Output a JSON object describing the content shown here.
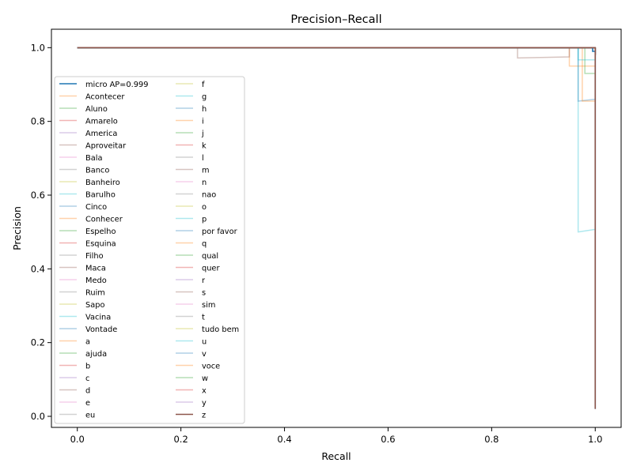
{
  "chart_data": {
    "type": "line",
    "title": "Precision–Recall",
    "xlabel": "Recall",
    "ylabel": "Precision",
    "xlim": [
      -0.05,
      1.05
    ],
    "ylim": [
      -0.03,
      1.05
    ],
    "xticks": [
      0.0,
      0.2,
      0.4,
      0.6,
      0.8,
      1.0
    ],
    "xtick_labels": [
      "0.0",
      "0.2",
      "0.4",
      "0.6",
      "0.8",
      "1.0"
    ],
    "yticks": [
      0.0,
      0.2,
      0.4,
      0.6,
      0.8,
      1.0
    ],
    "ytick_labels": [
      "0.0",
      "0.2",
      "0.4",
      "0.6",
      "0.8",
      "1.0"
    ],
    "grid": false,
    "legend_placement": "center-left",
    "legend_columns": 2,
    "series": [
      {
        "name": "micro AP=0.999",
        "color": "#1f77b4",
        "alpha": 1.0,
        "x": [
          0,
          0.995,
          0.995,
          1.0,
          1.0
        ],
        "y": [
          1.0,
          1.0,
          0.99,
          0.99,
          0.02
        ]
      },
      {
        "name": "Acontecer",
        "color": "#ff7f0e",
        "alpha": 0.35,
        "x": [
          0,
          0.95,
          0.95,
          1.0,
          1.0
        ],
        "y": [
          1.0,
          1.0,
          0.95,
          0.95,
          0.95
        ]
      },
      {
        "name": "Aluno",
        "color": "#2ca02c",
        "alpha": 0.35,
        "x": [
          0,
          1.0,
          1.0
        ],
        "y": [
          1.0,
          1.0,
          0.98
        ]
      },
      {
        "name": "Amarelo",
        "color": "#d62728",
        "alpha": 0.35,
        "x": [
          0,
          1.0,
          1.0
        ],
        "y": [
          1.0,
          1.0,
          0.97
        ]
      },
      {
        "name": "America",
        "color": "#9467bd",
        "alpha": 0.35,
        "x": [
          0,
          1.0,
          1.0
        ],
        "y": [
          1.0,
          1.0,
          0.99
        ]
      },
      {
        "name": "Aproveitar",
        "color": "#8c564b",
        "alpha": 0.35,
        "x": [
          0,
          0.85,
          0.85,
          0.95,
          0.95,
          1.0
        ],
        "y": [
          1.0,
          1.0,
          0.972,
          0.975,
          1.0,
          1.0
        ]
      },
      {
        "name": "Bala",
        "color": "#e377c2",
        "alpha": 0.35,
        "x": [
          0,
          1.0,
          1.0
        ],
        "y": [
          1.0,
          1.0,
          0.98
        ]
      },
      {
        "name": "Banco",
        "color": "#7f7f7f",
        "alpha": 0.35,
        "x": [
          0,
          1.0,
          1.0
        ],
        "y": [
          1.0,
          1.0,
          0.99
        ]
      },
      {
        "name": "Banheiro",
        "color": "#bcbd22",
        "alpha": 0.35,
        "x": [
          0,
          1.0,
          1.0
        ],
        "y": [
          1.0,
          1.0,
          0.985
        ]
      },
      {
        "name": "Barulho",
        "color": "#17becf",
        "alpha": 0.35,
        "x": [
          0,
          0.967,
          0.967,
          1.0,
          1.0
        ],
        "y": [
          1.0,
          1.0,
          0.5,
          0.507,
          1.0
        ]
      },
      {
        "name": "Cinco",
        "color": "#1f77b4",
        "alpha": 0.35,
        "x": [
          0,
          0.967,
          0.967,
          1.0,
          1.0
        ],
        "y": [
          1.0,
          1.0,
          0.855,
          0.86,
          1.0
        ]
      },
      {
        "name": "Conhecer",
        "color": "#ff7f0e",
        "alpha": 0.35,
        "x": [
          0,
          0.975,
          0.975,
          1.0,
          1.0
        ],
        "y": [
          1.0,
          1.0,
          0.855,
          0.855,
          1.0
        ]
      },
      {
        "name": "Espelho",
        "color": "#2ca02c",
        "alpha": 0.35,
        "x": [
          0,
          0.98,
          0.98,
          1.0,
          1.0
        ],
        "y": [
          1.0,
          1.0,
          0.93,
          0.93,
          1.0
        ]
      },
      {
        "name": "Esquina",
        "color": "#d62728",
        "alpha": 0.35,
        "x": [
          0,
          1.0,
          1.0
        ],
        "y": [
          1.0,
          1.0,
          0.98
        ]
      },
      {
        "name": "Filho",
        "color": "#7f7f7f",
        "alpha": 0.35,
        "x": [
          0,
          1.0,
          1.0
        ],
        "y": [
          1.0,
          1.0,
          0.99
        ]
      },
      {
        "name": "Maca",
        "color": "#8c564b",
        "alpha": 0.35,
        "x": [
          0,
          1.0,
          1.0
        ],
        "y": [
          1.0,
          1.0,
          0.98
        ]
      },
      {
        "name": "Medo",
        "color": "#e377c2",
        "alpha": 0.35,
        "x": [
          0,
          1.0,
          1.0
        ],
        "y": [
          1.0,
          1.0,
          0.98
        ]
      },
      {
        "name": "Ruim",
        "color": "#7f7f7f",
        "alpha": 0.35,
        "x": [
          0,
          1.0,
          1.0
        ],
        "y": [
          1.0,
          1.0,
          0.99
        ]
      },
      {
        "name": "Sapo",
        "color": "#bcbd22",
        "alpha": 0.35,
        "x": [
          0,
          1.0,
          1.0
        ],
        "y": [
          1.0,
          1.0,
          0.98
        ]
      },
      {
        "name": "Vacina",
        "color": "#17becf",
        "alpha": 0.35,
        "x": [
          0,
          0.967,
          0.967,
          1.0,
          1.0
        ],
        "y": [
          1.0,
          1.0,
          0.967,
          0.967,
          1.0
        ]
      },
      {
        "name": "Vontade",
        "color": "#1f77b4",
        "alpha": 0.35,
        "x": [
          0,
          1.0,
          1.0
        ],
        "y": [
          1.0,
          1.0,
          0.99
        ]
      },
      {
        "name": "a",
        "color": "#ff7f0e",
        "alpha": 0.35,
        "x": [
          0,
          1.0,
          1.0
        ],
        "y": [
          1.0,
          1.0,
          0.98
        ]
      },
      {
        "name": "ajuda",
        "color": "#2ca02c",
        "alpha": 0.35,
        "x": [
          0,
          1.0,
          1.0
        ],
        "y": [
          1.0,
          1.0,
          0.98
        ]
      },
      {
        "name": "b",
        "color": "#d62728",
        "alpha": 0.35,
        "x": [
          0,
          1.0,
          1.0
        ],
        "y": [
          1.0,
          1.0,
          0.98
        ]
      },
      {
        "name": "c",
        "color": "#9467bd",
        "alpha": 0.35,
        "x": [
          0,
          1.0,
          1.0
        ],
        "y": [
          1.0,
          1.0,
          0.98
        ]
      },
      {
        "name": "d",
        "color": "#8c564b",
        "alpha": 0.35,
        "x": [
          0,
          1.0,
          1.0
        ],
        "y": [
          1.0,
          1.0,
          0.98
        ]
      },
      {
        "name": "e",
        "color": "#e377c2",
        "alpha": 0.35,
        "x": [
          0,
          1.0,
          1.0
        ],
        "y": [
          1.0,
          1.0,
          0.98
        ]
      },
      {
        "name": "eu",
        "color": "#7f7f7f",
        "alpha": 0.35,
        "x": [
          0,
          1.0,
          1.0
        ],
        "y": [
          1.0,
          1.0,
          0.99
        ]
      },
      {
        "name": "f",
        "color": "#bcbd22",
        "alpha": 0.35,
        "x": [
          0,
          1.0,
          1.0
        ],
        "y": [
          1.0,
          1.0,
          0.98
        ]
      },
      {
        "name": "g",
        "color": "#17becf",
        "alpha": 0.35,
        "x": [
          0,
          1.0,
          1.0
        ],
        "y": [
          1.0,
          1.0,
          0.98
        ]
      },
      {
        "name": "h",
        "color": "#1f77b4",
        "alpha": 0.35,
        "x": [
          0,
          1.0,
          1.0
        ],
        "y": [
          1.0,
          1.0,
          0.98
        ]
      },
      {
        "name": "i",
        "color": "#ff7f0e",
        "alpha": 0.35,
        "x": [
          0,
          1.0,
          1.0
        ],
        "y": [
          1.0,
          1.0,
          0.98
        ]
      },
      {
        "name": "j",
        "color": "#2ca02c",
        "alpha": 0.35,
        "x": [
          0,
          1.0,
          1.0
        ],
        "y": [
          1.0,
          1.0,
          0.98
        ]
      },
      {
        "name": "k",
        "color": "#d62728",
        "alpha": 0.35,
        "x": [
          0,
          1.0,
          1.0
        ],
        "y": [
          1.0,
          1.0,
          0.98
        ]
      },
      {
        "name": "l",
        "color": "#7f7f7f",
        "alpha": 0.35,
        "x": [
          0,
          1.0,
          1.0
        ],
        "y": [
          1.0,
          1.0,
          0.98
        ]
      },
      {
        "name": "m",
        "color": "#8c564b",
        "alpha": 0.35,
        "x": [
          0,
          1.0,
          1.0
        ],
        "y": [
          1.0,
          1.0,
          0.98
        ]
      },
      {
        "name": "n",
        "color": "#e377c2",
        "alpha": 0.35,
        "x": [
          0,
          1.0,
          1.0
        ],
        "y": [
          1.0,
          1.0,
          0.98
        ]
      },
      {
        "name": "nao",
        "color": "#7f7f7f",
        "alpha": 0.35,
        "x": [
          0,
          1.0,
          1.0
        ],
        "y": [
          1.0,
          1.0,
          0.98
        ]
      },
      {
        "name": "o",
        "color": "#bcbd22",
        "alpha": 0.35,
        "x": [
          0,
          1.0,
          1.0
        ],
        "y": [
          1.0,
          1.0,
          0.98
        ]
      },
      {
        "name": "p",
        "color": "#17becf",
        "alpha": 0.35,
        "x": [
          0,
          1.0,
          1.0
        ],
        "y": [
          1.0,
          1.0,
          0.98
        ]
      },
      {
        "name": "por favor",
        "color": "#1f77b4",
        "alpha": 0.35,
        "x": [
          0,
          1.0,
          1.0
        ],
        "y": [
          1.0,
          1.0,
          0.98
        ]
      },
      {
        "name": "q",
        "color": "#ff7f0e",
        "alpha": 0.35,
        "x": [
          0,
          1.0,
          1.0
        ],
        "y": [
          1.0,
          1.0,
          0.98
        ]
      },
      {
        "name": "qual",
        "color": "#2ca02c",
        "alpha": 0.35,
        "x": [
          0,
          1.0,
          1.0
        ],
        "y": [
          1.0,
          1.0,
          0.98
        ]
      },
      {
        "name": "quer",
        "color": "#d62728",
        "alpha": 0.35,
        "x": [
          0,
          1.0,
          1.0
        ],
        "y": [
          1.0,
          1.0,
          0.98
        ]
      },
      {
        "name": "r",
        "color": "#9467bd",
        "alpha": 0.35,
        "x": [
          0,
          1.0,
          1.0
        ],
        "y": [
          1.0,
          1.0,
          0.98
        ]
      },
      {
        "name": "s",
        "color": "#8c564b",
        "alpha": 0.35,
        "x": [
          0,
          1.0,
          1.0
        ],
        "y": [
          1.0,
          1.0,
          0.98
        ]
      },
      {
        "name": "sim",
        "color": "#e377c2",
        "alpha": 0.35,
        "x": [
          0,
          1.0,
          1.0
        ],
        "y": [
          1.0,
          1.0,
          0.98
        ]
      },
      {
        "name": "t",
        "color": "#7f7f7f",
        "alpha": 0.35,
        "x": [
          0,
          1.0,
          1.0
        ],
        "y": [
          1.0,
          1.0,
          0.98
        ]
      },
      {
        "name": "tudo bem",
        "color": "#bcbd22",
        "alpha": 0.35,
        "x": [
          0,
          1.0,
          1.0
        ],
        "y": [
          1.0,
          1.0,
          0.98
        ]
      },
      {
        "name": "u",
        "color": "#17becf",
        "alpha": 0.35,
        "x": [
          0,
          1.0,
          1.0
        ],
        "y": [
          1.0,
          1.0,
          0.98
        ]
      },
      {
        "name": "v",
        "color": "#1f77b4",
        "alpha": 0.35,
        "x": [
          0,
          1.0,
          1.0
        ],
        "y": [
          1.0,
          1.0,
          0.98
        ]
      },
      {
        "name": "voce",
        "color": "#ff7f0e",
        "alpha": 0.35,
        "x": [
          0,
          1.0,
          1.0
        ],
        "y": [
          1.0,
          1.0,
          0.98
        ]
      },
      {
        "name": "w",
        "color": "#2ca02c",
        "alpha": 0.35,
        "x": [
          0,
          1.0,
          1.0
        ],
        "y": [
          1.0,
          1.0,
          0.98
        ]
      },
      {
        "name": "x",
        "color": "#d62728",
        "alpha": 0.35,
        "x": [
          0,
          1.0,
          1.0
        ],
        "y": [
          1.0,
          1.0,
          0.98
        ]
      },
      {
        "name": "y",
        "color": "#9467bd",
        "alpha": 0.35,
        "x": [
          0,
          1.0,
          1.0
        ],
        "y": [
          1.0,
          1.0,
          0.98
        ]
      },
      {
        "name": "z",
        "color": "#8c564b",
        "alpha": 1.0,
        "x": [
          0,
          1.0,
          1.0
        ],
        "y": [
          1.0,
          1.0,
          0.02
        ]
      }
    ]
  }
}
